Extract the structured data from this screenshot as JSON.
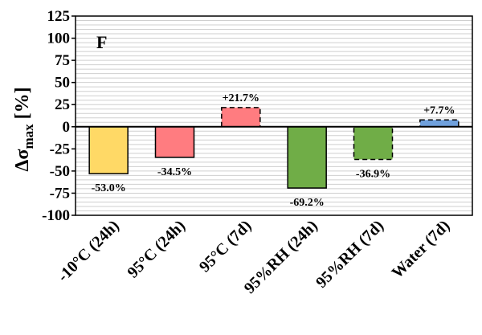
{
  "chart_data": {
    "type": "bar",
    "panel_label": "F",
    "ylabel": {
      "prefix": "Δσ",
      "subscript": "max",
      "suffix": " [%]"
    },
    "ylim": [
      -100,
      125
    ],
    "yticks": [
      -100,
      -75,
      -50,
      -25,
      0,
      25,
      50,
      75,
      100,
      125
    ],
    "grid": true,
    "categories": [
      "-10°C (24h)",
      "95°C (24h)",
      "95°C (7d)",
      "95%RH (24h)",
      "95%RH (7d)",
      "Water (7d)"
    ],
    "values": [
      -53.0,
      -34.5,
      21.7,
      -69.2,
      -36.9,
      7.7
    ],
    "data_labels": [
      "-53.0%",
      "-34.5%",
      "+21.7%",
      "-69.2%",
      "-36.9%",
      "+7.7%"
    ],
    "bar_colors": [
      "#FFD966",
      "#FF7C80",
      "#FF7C80",
      "#70AD47",
      "#70AD47",
      "#6FA0DC"
    ],
    "bar_border_styles": [
      "solid",
      "solid",
      "dashed",
      "solid",
      "dashed",
      "dashed"
    ]
  }
}
